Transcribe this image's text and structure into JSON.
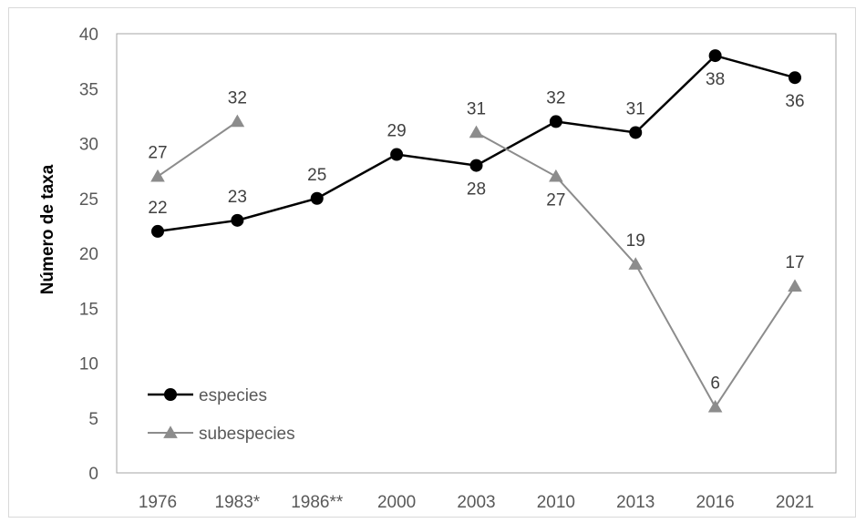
{
  "chart_data": {
    "type": "line",
    "categories": [
      "1976",
      "1983*",
      "1986**",
      "2000",
      "2003",
      "2010",
      "2013",
      "2016",
      "2021"
    ],
    "ylabel": "Número de taxa",
    "xlabel": "",
    "ylim": [
      0,
      40
    ],
    "yticks": [
      "0",
      "5",
      "10",
      "15",
      "20",
      "25",
      "30",
      "35",
      "40"
    ],
    "grid": false,
    "legend_position": "bottom-left",
    "series": [
      {
        "name": "especies",
        "color": "#000000",
        "marker": "circle",
        "values": [
          22,
          23,
          25,
          29,
          28,
          32,
          31,
          38,
          36
        ],
        "label_pos": [
          "above",
          "above",
          "above",
          "above",
          "below",
          "above",
          "above",
          "below",
          "below"
        ]
      },
      {
        "name": "subespecies",
        "color": "#8c8c8c",
        "marker": "triangle",
        "values": [
          27,
          32,
          null,
          null,
          31,
          27,
          19,
          6,
          17
        ],
        "label_pos": [
          "above",
          "above",
          null,
          null,
          "above",
          "below",
          "above",
          "above",
          "above"
        ]
      }
    ]
  }
}
